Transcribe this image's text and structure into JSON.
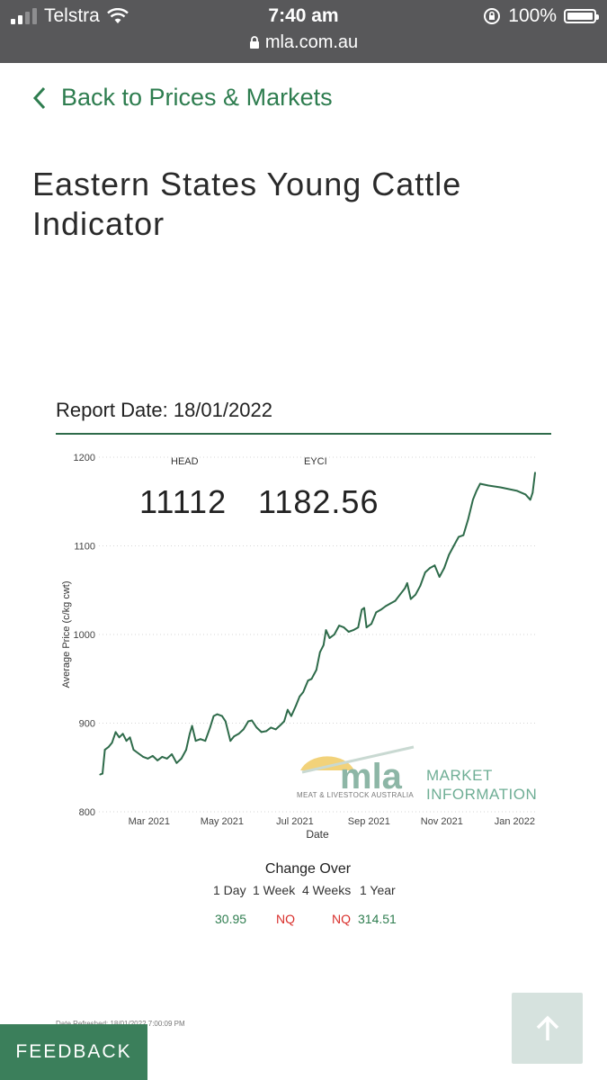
{
  "status_bar": {
    "carrier": "Telstra",
    "time": "7:40 am",
    "battery": "100%",
    "url": "mla.com.au"
  },
  "nav": {
    "back_label": "Back to Prices & Markets"
  },
  "page": {
    "title": "Eastern States Young Cattle Indicator",
    "report_date": "Report Date: 18/01/2022",
    "date_refreshed": "Date Refreshed: 18/01/2022 7:00:09 PM"
  },
  "kpis": {
    "head_label": "HEAD",
    "head_value": "11112",
    "eyci_label": "EYCI",
    "eyci_value": "1182.56"
  },
  "watermark": {
    "brand": "mla",
    "tagline": "MEAT & LIVESTOCK AUSTRALIA",
    "line1": "MARKET",
    "line2": "INFORMATION"
  },
  "change": {
    "title": "Change Over",
    "periods": [
      "1 Day",
      "1 Week",
      "4 Weeks",
      "1 Year"
    ],
    "values": [
      "30.95",
      "NQ",
      "NQ",
      "314.51"
    ],
    "colors": [
      "#2e7d4f",
      "#d9302c",
      "#d9302c",
      "#2e7d4f"
    ]
  },
  "buttons": {
    "feedback": "FEEDBACK"
  },
  "colors": {
    "brand_green": "#2e7d4f",
    "line": "#2e6b4a",
    "status_bar": "#58585a"
  },
  "chart_data": {
    "type": "line",
    "xlabel": "Date",
    "ylabel": "Average Price (c/kg cwt)",
    "ylim": [
      800,
      1200
    ],
    "yticks": [
      800,
      900,
      1000,
      1100,
      1200
    ],
    "xticks": [
      {
        "label": "Mar 2021",
        "date": "2021-03-01"
      },
      {
        "label": "May 2021",
        "date": "2021-05-01"
      },
      {
        "label": "Jul 2021",
        "date": "2021-07-01"
      },
      {
        "label": "Sep 2021",
        "date": "2021-09-01"
      },
      {
        "label": "Nov 2021",
        "date": "2021-11-01"
      },
      {
        "label": "Jan 2022",
        "date": "2022-01-01"
      }
    ],
    "xlim": [
      "2021-01-18",
      "2022-01-18"
    ],
    "grid": true,
    "series": [
      {
        "color": "#2e6b4a",
        "points": [
          [
            "2021-01-19",
            842
          ],
          [
            "2021-01-21",
            843
          ],
          [
            "2021-01-23",
            870
          ],
          [
            "2021-01-26",
            873
          ],
          [
            "2021-01-29",
            878
          ],
          [
            "2021-02-01",
            890
          ],
          [
            "2021-02-04",
            884
          ],
          [
            "2021-02-07",
            888
          ],
          [
            "2021-02-10",
            880
          ],
          [
            "2021-02-13",
            884
          ],
          [
            "2021-02-16",
            870
          ],
          [
            "2021-02-20",
            866
          ],
          [
            "2021-02-24",
            862
          ],
          [
            "2021-02-28",
            860
          ],
          [
            "2021-03-04",
            863
          ],
          [
            "2021-03-08",
            858
          ],
          [
            "2021-03-12",
            862
          ],
          [
            "2021-03-16",
            860
          ],
          [
            "2021-03-20",
            865
          ],
          [
            "2021-03-24",
            855
          ],
          [
            "2021-03-28",
            860
          ],
          [
            "2021-04-01",
            870
          ],
          [
            "2021-04-04",
            888
          ],
          [
            "2021-04-06",
            897
          ],
          [
            "2021-04-09",
            880
          ],
          [
            "2021-04-13",
            882
          ],
          [
            "2021-04-17",
            880
          ],
          [
            "2021-04-21",
            895
          ],
          [
            "2021-04-24",
            908
          ],
          [
            "2021-04-27",
            910
          ],
          [
            "2021-05-01",
            908
          ],
          [
            "2021-05-04",
            902
          ],
          [
            "2021-05-08",
            880
          ],
          [
            "2021-05-11",
            885
          ],
          [
            "2021-05-15",
            888
          ],
          [
            "2021-05-19",
            893
          ],
          [
            "2021-05-23",
            902
          ],
          [
            "2021-05-26",
            903
          ],
          [
            "2021-05-30",
            895
          ],
          [
            "2021-06-03",
            890
          ],
          [
            "2021-06-07",
            891
          ],
          [
            "2021-06-11",
            895
          ],
          [
            "2021-06-15",
            893
          ],
          [
            "2021-06-19",
            898
          ],
          [
            "2021-06-22",
            902
          ],
          [
            "2021-06-25",
            915
          ],
          [
            "2021-06-28",
            908
          ],
          [
            "2021-07-02",
            920
          ],
          [
            "2021-07-05",
            930
          ],
          [
            "2021-07-08",
            935
          ],
          [
            "2021-07-12",
            948
          ],
          [
            "2021-07-15",
            950
          ],
          [
            "2021-07-19",
            960
          ],
          [
            "2021-07-22",
            980
          ],
          [
            "2021-07-25",
            988
          ],
          [
            "2021-07-27",
            1005
          ],
          [
            "2021-07-30",
            996
          ],
          [
            "2021-08-03",
            1000
          ],
          [
            "2021-08-07",
            1010
          ],
          [
            "2021-08-11",
            1008
          ],
          [
            "2021-08-15",
            1003
          ],
          [
            "2021-08-19",
            1005
          ],
          [
            "2021-08-23",
            1008
          ],
          [
            "2021-08-26",
            1028
          ],
          [
            "2021-08-28",
            1030
          ],
          [
            "2021-08-30",
            1008
          ],
          [
            "2021-09-03",
            1012
          ],
          [
            "2021-09-07",
            1025
          ],
          [
            "2021-09-11",
            1028
          ],
          [
            "2021-09-15",
            1032
          ],
          [
            "2021-09-19",
            1035
          ],
          [
            "2021-09-23",
            1038
          ],
          [
            "2021-09-27",
            1045
          ],
          [
            "2021-10-01",
            1052
          ],
          [
            "2021-10-03",
            1058
          ],
          [
            "2021-10-06",
            1040
          ],
          [
            "2021-10-10",
            1045
          ],
          [
            "2021-10-14",
            1055
          ],
          [
            "2021-10-18",
            1070
          ],
          [
            "2021-10-22",
            1075
          ],
          [
            "2021-10-26",
            1078
          ],
          [
            "2021-10-30",
            1065
          ],
          [
            "2021-11-03",
            1075
          ],
          [
            "2021-11-07",
            1090
          ],
          [
            "2021-11-11",
            1100
          ],
          [
            "2021-11-15",
            1110
          ],
          [
            "2021-11-19",
            1112
          ],
          [
            "2021-11-23",
            1130
          ],
          [
            "2021-11-27",
            1152
          ],
          [
            "2021-11-30",
            1162
          ],
          [
            "2021-12-03",
            1170
          ],
          [
            "2021-12-10",
            1168
          ],
          [
            "2021-12-20",
            1166
          ],
          [
            "2022-01-03",
            1162
          ],
          [
            "2022-01-10",
            1158
          ],
          [
            "2022-01-14",
            1152
          ],
          [
            "2022-01-16",
            1160
          ],
          [
            "2022-01-18",
            1182.56
          ]
        ]
      }
    ]
  }
}
